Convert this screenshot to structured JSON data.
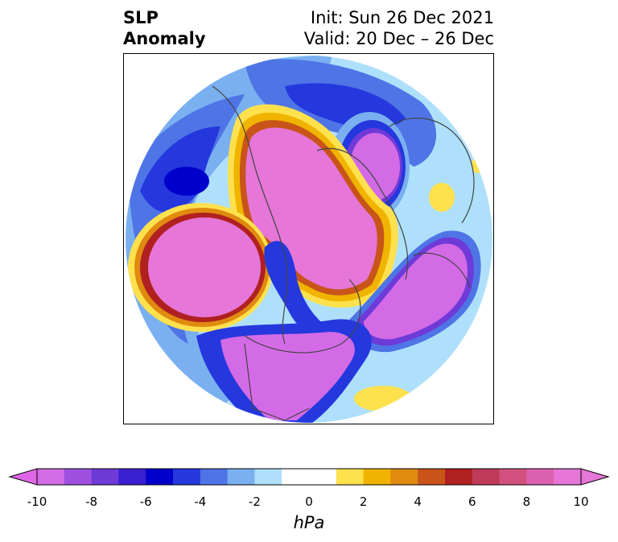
{
  "header": {
    "variable": "SLP",
    "subtitle": "Anomaly",
    "init": "Init: Sun 26 Dec 2021",
    "valid": "Valid: 20 Dec – 26 Dec"
  },
  "colorbar": {
    "unit": "hPa",
    "range": [
      -10,
      10
    ],
    "ticks": [
      "-10",
      "-8",
      "-6",
      "-4",
      "-2",
      "0",
      "2",
      "4",
      "6",
      "8",
      "10"
    ],
    "colors": [
      "#d36be6",
      "#a050e0",
      "#6e3ad8",
      "#3a1fd0",
      "#0000cc",
      "#2438dd",
      "#4e74e6",
      "#7ab0f0",
      "#aee0fb",
      "#ffffff",
      "#ffffff",
      "#ffe14d",
      "#f0b400",
      "#e08a10",
      "#c8541a",
      "#b02020",
      "#c03a5a",
      "#d2507e",
      "#dc60b0",
      "#e676d8"
    ],
    "under_color": "#e066e8",
    "over_color": "#e676d8"
  },
  "map": {
    "projection": "north-polar-stereographic",
    "field": "SLP anomaly"
  }
}
